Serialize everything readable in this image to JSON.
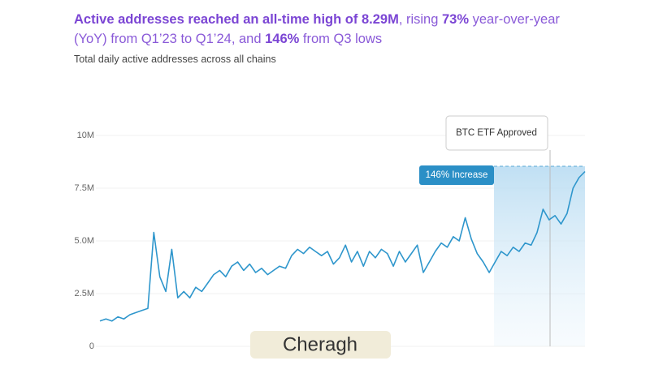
{
  "title": [
    [
      {
        "text": "Active addresses reached an all-time high of 8.29M",
        "bold": true
      },
      {
        "text": ", rising ",
        "bold": false
      },
      {
        "text": "73%",
        "bold": true
      },
      {
        "text": " year-over-year",
        "bold": false
      }
    ],
    [
      {
        "text": "(YoY) from Q1’23 to Q1’24, and ",
        "bold": false
      },
      {
        "text": "146%",
        "bold": true
      },
      {
        "text": " from Q3 lows",
        "bold": false
      }
    ]
  ],
  "subtitle": "Total daily active addresses across all chains",
  "watermark": "Cheragh",
  "chart_data": {
    "type": "line",
    "color": "#2e96cc",
    "ylim": [
      0,
      10
    ],
    "yticks": [
      0,
      {
        "value": 2.5,
        "label": "2.5M"
      },
      {
        "value": 5,
        "label": "5.0M"
      },
      {
        "value": 7.5,
        "label": "7.5M"
      },
      {
        "value": 10,
        "label": "10M"
      }
    ],
    "annotations": [
      "BTC ETF Approved",
      "146% Increase"
    ],
    "values": [
      1.2,
      1.3,
      1.2,
      1.4,
      1.3,
      1.5,
      1.6,
      1.7,
      1.8,
      5.4,
      3.3,
      2.6,
      4.6,
      2.3,
      2.6,
      2.3,
      2.8,
      2.6,
      3.0,
      3.4,
      3.6,
      3.3,
      3.8,
      4.0,
      3.6,
      3.9,
      3.5,
      3.7,
      3.4,
      3.6,
      3.8,
      3.7,
      4.3,
      4.6,
      4.4,
      4.7,
      4.5,
      4.3,
      4.5,
      3.9,
      4.2,
      4.8,
      4.0,
      4.5,
      3.8,
      4.5,
      4.2,
      4.6,
      4.4,
      3.8,
      4.5,
      4.0,
      4.4,
      4.8,
      3.5,
      4.0,
      4.5,
      4.9,
      4.7,
      5.2,
      5.0,
      6.1,
      5.1,
      4.4,
      4.0,
      3.5,
      4.0,
      4.5,
      4.3,
      4.7,
      4.5,
      4.9,
      4.8,
      5.4,
      6.5,
      6.0,
      6.2,
      5.8,
      6.3,
      7.5,
      8.0,
      8.29
    ]
  }
}
